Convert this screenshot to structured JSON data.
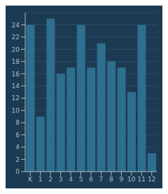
{
  "chart_data": {
    "type": "bar",
    "categories": [
      "K",
      "1",
      "2",
      "3",
      "4",
      "5",
      "6",
      "7",
      "8",
      "9",
      "10",
      "11",
      "12"
    ],
    "values": [
      24,
      9,
      25,
      16,
      17,
      24,
      17,
      21,
      18,
      17,
      13,
      24,
      3
    ],
    "color": "#2e6e8e",
    "ylim": [
      0,
      26
    ],
    "yticks": [
      0,
      2,
      4,
      6,
      8,
      10,
      12,
      14,
      16,
      18,
      20,
      22,
      24
    ],
    "grid": true
  }
}
